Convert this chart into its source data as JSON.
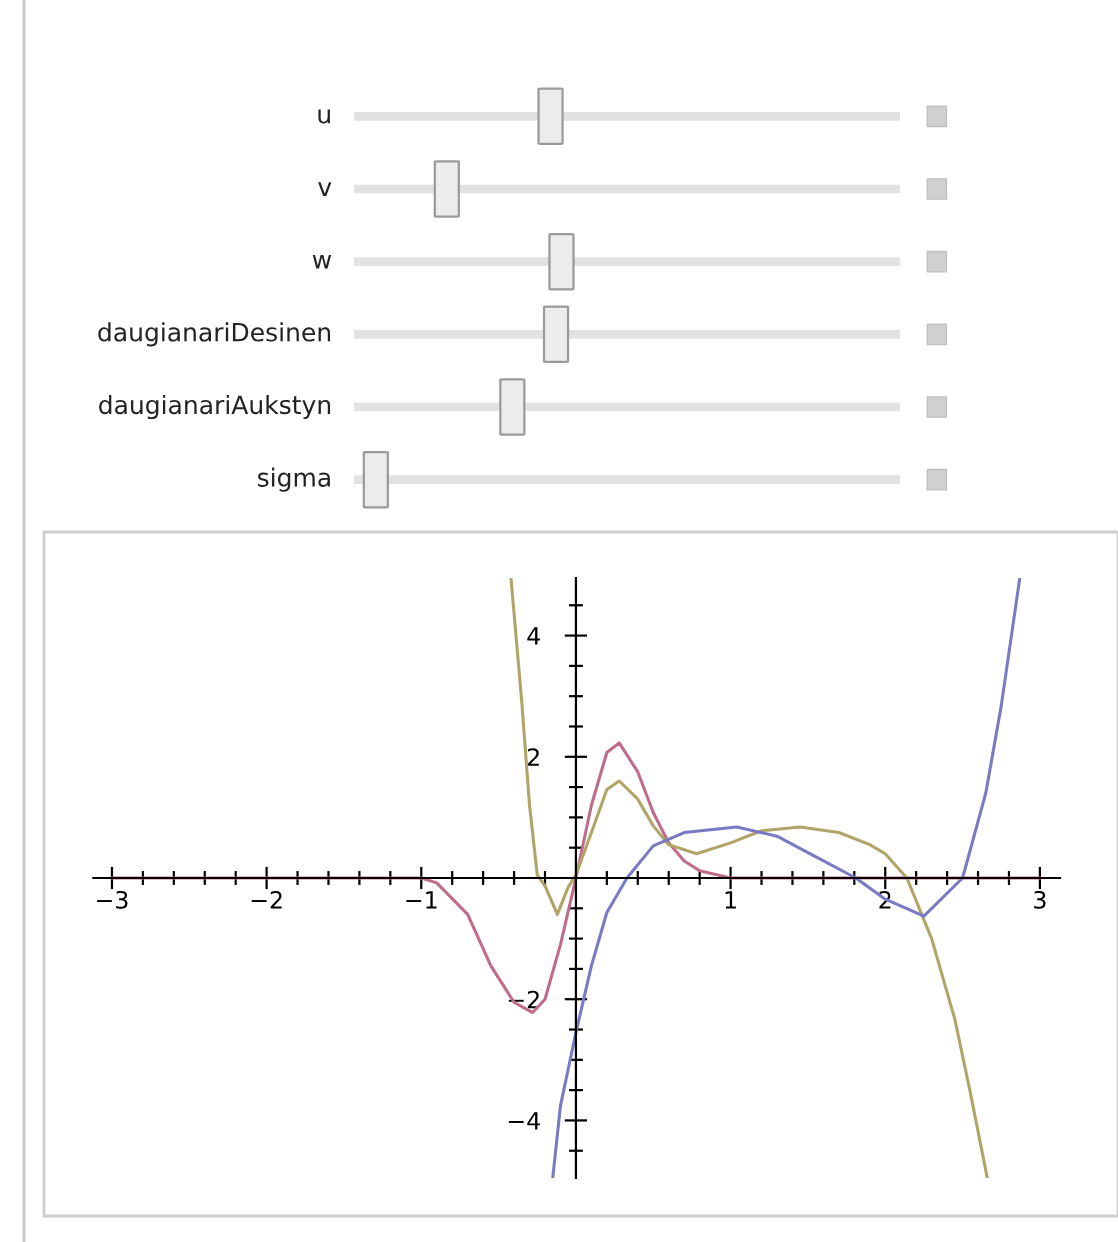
{
  "chart_data": [
    {
      "type": "other",
      "categories": [
        "u",
        "v",
        "w",
        "daugianariDesinen",
        "daugianariAukstyn",
        "sigma"
      ]
    },
    {
      "type": "line",
      "xlim": [
        -3.12,
        3.13
      ],
      "ylim": [
        -4.95,
        4.95
      ],
      "xticks": [
        {
          "value": -3,
          "label": "−3"
        },
        {
          "value": -2.8,
          "label": null
        },
        {
          "value": -2.6,
          "label": null
        },
        {
          "value": -2.4,
          "label": null
        },
        {
          "value": -2.2,
          "label": null
        },
        {
          "value": -2,
          "label": "−2"
        },
        {
          "value": -1.8,
          "label": null
        },
        {
          "value": -1.6,
          "label": null
        },
        {
          "value": -1.4,
          "label": null
        },
        {
          "value": -1.2,
          "label": null
        },
        {
          "value": -1,
          "label": "−1"
        },
        {
          "value": -0.8,
          "label": null
        },
        {
          "value": -0.6,
          "label": null
        },
        {
          "value": -0.4,
          "label": null
        },
        {
          "value": -0.2,
          "label": null
        },
        {
          "value": 0.2,
          "label": null
        },
        {
          "value": 0.4,
          "label": null
        },
        {
          "value": 0.6,
          "label": null
        },
        {
          "value": 0.8,
          "label": null
        },
        1,
        {
          "value": 1.2,
          "label": null
        },
        {
          "value": 1.4,
          "label": null
        },
        {
          "value": 1.6,
          "label": null
        },
        {
          "value": 1.8,
          "label": null
        },
        2,
        {
          "value": 2.2,
          "label": null
        },
        {
          "value": 2.4,
          "label": null
        },
        {
          "value": 2.6,
          "label": null
        },
        {
          "value": 2.8,
          "label": null
        },
        3
      ],
      "yticks": [
        {
          "value": -4.5,
          "label": null
        },
        {
          "value": -4,
          "label": "−4"
        },
        {
          "value": -3.5,
          "label": null
        },
        {
          "value": -3,
          "label": null
        },
        {
          "value": -2.5,
          "label": null
        },
        {
          "value": -2,
          "label": "−2"
        },
        {
          "value": -1.5,
          "label": null
        },
        {
          "value": -1,
          "label": null
        },
        {
          "value": -0.5,
          "label": null
        },
        {
          "value": 0.5,
          "label": null
        },
        {
          "value": 1,
          "label": null
        },
        {
          "value": 1.5,
          "label": null
        },
        2,
        {
          "value": 2.5,
          "label": null
        },
        {
          "value": 3,
          "label": null
        },
        {
          "value": 3.5,
          "label": null
        },
        4,
        {
          "value": 4.5,
          "label": null
        }
      ],
      "grid": false,
      "legend": false,
      "series": [
        {
          "color": "#c06a8c",
          "x": [
            -3,
            -1,
            -0.9,
            -0.7,
            -0.55,
            -0.4,
            -0.28,
            -0.2,
            -0.1,
            0,
            0.1,
            0.2,
            0.28,
            0.4,
            0.5,
            0.6,
            0.7,
            0.8,
            1.0,
            3
          ],
          "values": [
            0,
            0,
            -0.08,
            -0.6,
            -1.45,
            -2.05,
            -2.22,
            -2.0,
            -1.1,
            0,
            1.2,
            2.07,
            2.23,
            1.75,
            1.08,
            0.58,
            0.28,
            0.12,
            0,
            0
          ]
        },
        {
          "color": "#b0a467",
          "x": [
            -0.42,
            -0.35,
            -0.3,
            -0.25,
            -0.2,
            -0.12,
            -0.05,
            0,
            0.1,
            0.2,
            0.28,
            0.4,
            0.5,
            0.6,
            0.78,
            1.0,
            1.2,
            1.45,
            1.7,
            1.9,
            2.0,
            2.14,
            2.3,
            2.45,
            2.55,
            2.66
          ],
          "values": [
            4.95,
            2.9,
            1.2,
            0.05,
            -0.13,
            -0.6,
            -0.15,
            0.05,
            0.75,
            1.46,
            1.6,
            1.3,
            0.86,
            0.55,
            0.4,
            0.58,
            0.78,
            0.84,
            0.75,
            0.55,
            0.4,
            0,
            -1.0,
            -2.33,
            -3.54,
            -4.95
          ]
        },
        {
          "color": "#7a7ac4",
          "x": [
            -0.15,
            -0.1,
            0,
            0.1,
            0.2,
            0.33,
            0.5,
            0.7,
            1.04,
            1.3,
            1.5,
            1.81,
            2.0,
            2.25,
            2.5,
            2.65,
            2.75,
            2.87
          ],
          "values": [
            -4.95,
            -3.76,
            -2.55,
            -1.45,
            -0.57,
            0,
            0.53,
            0.75,
            0.84,
            0.69,
            0.42,
            0,
            -0.35,
            -0.63,
            0,
            1.4,
            2.84,
            4.95
          ]
        }
      ]
    }
  ]
}
